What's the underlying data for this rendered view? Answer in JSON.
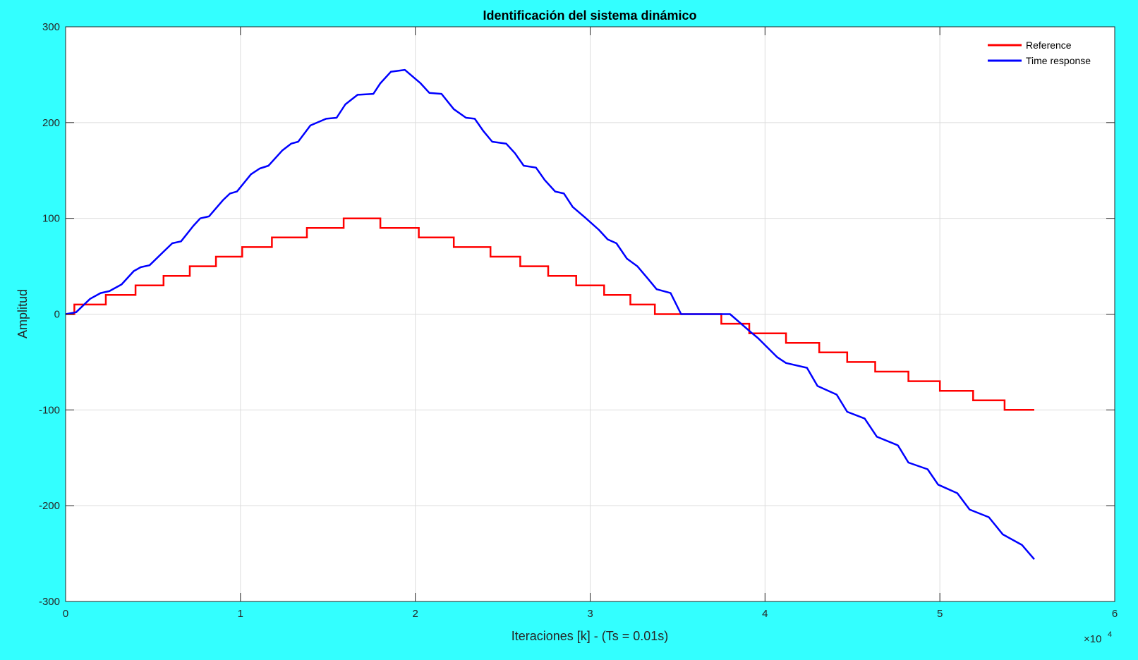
{
  "chart_data": {
    "type": "line",
    "title": "Identificación del sistema dinámico",
    "xlabel": "Iteraciones [k] - (Ts = 0.01s)",
    "ylabel": "Amplitud",
    "x_exponent_label": "×10",
    "x_exponent_power": "4",
    "xlim": [
      0,
      60000
    ],
    "ylim": [
      -300,
      300
    ],
    "xticks": [
      0,
      10000,
      20000,
      30000,
      40000,
      50000,
      60000
    ],
    "xtick_labels": [
      "0",
      "1",
      "2",
      "3",
      "4",
      "5",
      "6"
    ],
    "yticks": [
      -300,
      -200,
      -100,
      0,
      100,
      200,
      300
    ],
    "ytick_labels": [
      "-300",
      "-200",
      "-100",
      "0",
      "100",
      "200",
      "300"
    ],
    "grid": true,
    "legend_position": "top-right",
    "series": [
      {
        "name": "Reference",
        "color": "#ff0000",
        "step": true,
        "x": [
          0,
          500,
          2300,
          4000,
          5600,
          7100,
          8600,
          10100,
          11800,
          13800,
          15900,
          18000,
          20200,
          22200,
          24300,
          26000,
          27600,
          29200,
          30800,
          32300,
          33700,
          35300,
          37500,
          39100,
          41200,
          43100,
          44700,
          46300,
          48200,
          50000,
          51900,
          53700,
          55400
        ],
        "values": [
          0,
          10,
          20,
          30,
          40,
          50,
          60,
          70,
          80,
          90,
          100,
          90,
          80,
          70,
          60,
          50,
          40,
          30,
          20,
          10,
          0,
          0,
          -10,
          -20,
          -30,
          -40,
          -50,
          -60,
          -70,
          -80,
          -90,
          -100,
          -100
        ]
      },
      {
        "name": "Time response",
        "color": "#0000ff",
        "x": [
          0,
          600,
          1400,
          2000,
          2500,
          3200,
          3900,
          4300,
          4800,
          5700,
          6100,
          6600,
          7300,
          7700,
          8200,
          9000,
          9400,
          9800,
          10600,
          11100,
          11600,
          12400,
          12900,
          13300,
          14000,
          14900,
          15500,
          16000,
          16700,
          17600,
          18000,
          18600,
          19400,
          20300,
          20800,
          21500,
          22200,
          22900,
          23400,
          23900,
          24400,
          25200,
          25700,
          26200,
          26900,
          27400,
          28000,
          28500,
          29000,
          29700,
          30500,
          31000,
          31500,
          32100,
          32700,
          33300,
          33800,
          34600,
          35200,
          36300,
          37200,
          38000,
          39200,
          39600,
          40700,
          41200,
          42400,
          43000,
          44100,
          44700,
          45700,
          46400,
          47600,
          48200,
          49300,
          49900,
          51000,
          51700,
          52800,
          53600,
          54700,
          55400
        ],
        "values": [
          0,
          2,
          16,
          22,
          24,
          31,
          45,
          49,
          51,
          67,
          74,
          76,
          92,
          100,
          102,
          119,
          126,
          128,
          146,
          152,
          155,
          171,
          178,
          180,
          197,
          204,
          205,
          219,
          229,
          230,
          241,
          253,
          255,
          241,
          231,
          230,
          214,
          205,
          204,
          191,
          180,
          178,
          168,
          155,
          153,
          140,
          128,
          126,
          112,
          101,
          88,
          78,
          74,
          58,
          50,
          37,
          26,
          22,
          0,
          0,
          0,
          0,
          -19,
          -25,
          -45,
          -51,
          -56,
          -75,
          -84,
          -102,
          -109,
          -128,
          -137,
          -155,
          -162,
          -178,
          -187,
          -204,
          -212,
          -230,
          -241,
          -256
        ]
      }
    ]
  }
}
